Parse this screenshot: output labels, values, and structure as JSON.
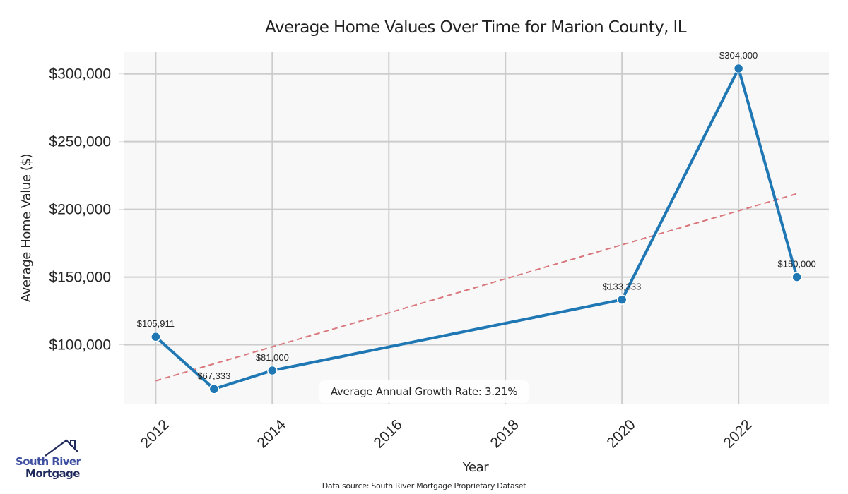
{
  "chart_data": {
    "type": "line",
    "title": "Average Home Values Over Time for Marion County, IL",
    "xlabel": "Year",
    "ylabel": "Average Home Value ($)",
    "x": [
      2012,
      2013,
      2014,
      2020,
      2022,
      2023
    ],
    "series": [
      {
        "name": "Average Home Value",
        "values": [
          105911,
          67333,
          81000,
          133333,
          304000,
          150000
        ],
        "labels": [
          "$105,911",
          "$67,333",
          "$81,000",
          "$133,333",
          "$304,000",
          "$150,000"
        ],
        "color": "#1f77b4"
      },
      {
        "name": "Trend",
        "style": "dashed",
        "color": "#d9777d",
        "x": [
          2012,
          2023
        ],
        "values": [
          73400,
          211500
        ]
      }
    ],
    "xlim": [
      2011.45,
      2023.55
    ],
    "ylim": [
      56000,
      316000
    ],
    "xticks": [
      2012,
      2014,
      2016,
      2018,
      2020,
      2022
    ],
    "xtick_labels": [
      "2012",
      "2014",
      "2016",
      "2018",
      "2020",
      "2022"
    ],
    "yticks": [
      100000,
      150000,
      200000,
      250000,
      300000
    ],
    "ytick_labels": [
      "$100,000",
      "$150,000",
      "$200,000",
      "$250,000",
      "$300,000"
    ],
    "grid": true,
    "annotation": "Average Annual Growth Rate: 3.21%",
    "colors": {
      "line": "#1f77b4",
      "trend": "#d9777d",
      "plot_bg": "#f8f8f8",
      "grid": "#cccccc"
    }
  },
  "footer": {
    "source": "Data source: South River Mortgage Proprietary Dataset"
  },
  "logo": {
    "line1": "South River",
    "line2": "Mortgage"
  }
}
